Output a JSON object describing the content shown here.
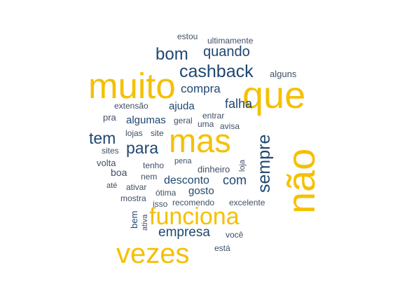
{
  "colors": {
    "primary": "#f5c000",
    "secondary": "#1f4770",
    "tertiary": "#3f4f66"
  },
  "words": [
    {
      "text": "não"
    },
    {
      "text": "que"
    },
    {
      "text": "muito"
    },
    {
      "text": "mas"
    },
    {
      "text": "vezes"
    },
    {
      "text": "funciona"
    },
    {
      "text": "sempre"
    },
    {
      "text": "cashback"
    },
    {
      "text": "bom"
    },
    {
      "text": "quando"
    },
    {
      "text": "tem"
    },
    {
      "text": "para"
    },
    {
      "text": "empresa"
    },
    {
      "text": "compra"
    },
    {
      "text": "falha"
    },
    {
      "text": "desconto"
    },
    {
      "text": "com"
    },
    {
      "text": "algumas"
    },
    {
      "text": "ajuda"
    },
    {
      "text": "gosto"
    },
    {
      "text": "estou"
    },
    {
      "text": "ultimamente"
    },
    {
      "text": "alguns"
    },
    {
      "text": "extensão"
    },
    {
      "text": "entrar"
    },
    {
      "text": "pra"
    },
    {
      "text": "geral"
    },
    {
      "text": "uma"
    },
    {
      "text": "avisa"
    },
    {
      "text": "lojas"
    },
    {
      "text": "site"
    },
    {
      "text": "sites"
    },
    {
      "text": "loja"
    },
    {
      "text": "volta"
    },
    {
      "text": "tenho"
    },
    {
      "text": "pena"
    },
    {
      "text": "dinheiro"
    },
    {
      "text": "boa"
    },
    {
      "text": "nem"
    },
    {
      "text": "até"
    },
    {
      "text": "ativar"
    },
    {
      "text": "ótima"
    },
    {
      "text": "mostra"
    },
    {
      "text": "isso"
    },
    {
      "text": "recomendo"
    },
    {
      "text": "excelente"
    },
    {
      "text": "bem"
    },
    {
      "text": "ativa"
    },
    {
      "text": "você"
    },
    {
      "text": "está"
    }
  ]
}
